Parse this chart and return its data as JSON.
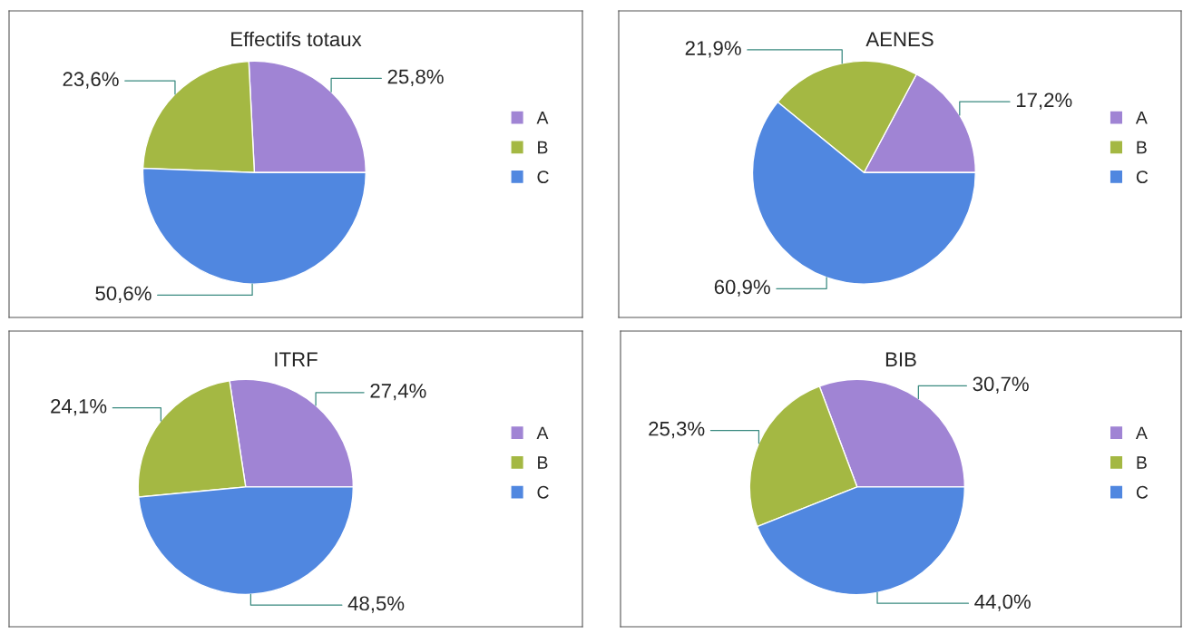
{
  "chart_data": [
    {
      "type": "pie",
      "title": "Effectifs totaux",
      "categories": [
        "A",
        "B",
        "C"
      ],
      "values": [
        25.8,
        23.6,
        50.6
      ],
      "value_labels": [
        "25,8%",
        "23,6%",
        "50,6%"
      ],
      "colors": [
        "#a084d4",
        "#a4b843",
        "#5087e0"
      ],
      "legend": "right"
    },
    {
      "type": "pie",
      "title": "AENES",
      "categories": [
        "A",
        "B",
        "C"
      ],
      "values": [
        17.2,
        21.9,
        60.9
      ],
      "value_labels": [
        "17,2%",
        "21,9%",
        "60,9%"
      ],
      "colors": [
        "#a084d4",
        "#a4b843",
        "#5087e0"
      ],
      "legend": "right"
    },
    {
      "type": "pie",
      "title": "ITRF",
      "categories": [
        "A",
        "B",
        "C"
      ],
      "values": [
        27.4,
        24.1,
        48.5
      ],
      "value_labels": [
        "27,4%",
        "24,1%",
        "48,5%"
      ],
      "colors": [
        "#a084d4",
        "#a4b843",
        "#5087e0"
      ],
      "legend": "right"
    },
    {
      "type": "pie",
      "title": "BIB",
      "categories": [
        "A",
        "B",
        "C"
      ],
      "values": [
        30.7,
        25.3,
        44.0
      ],
      "value_labels": [
        "30,7%",
        "25,3%",
        "44,0%"
      ],
      "colors": [
        "#a084d4",
        "#a4b843",
        "#5087e0"
      ],
      "legend": "right"
    }
  ]
}
